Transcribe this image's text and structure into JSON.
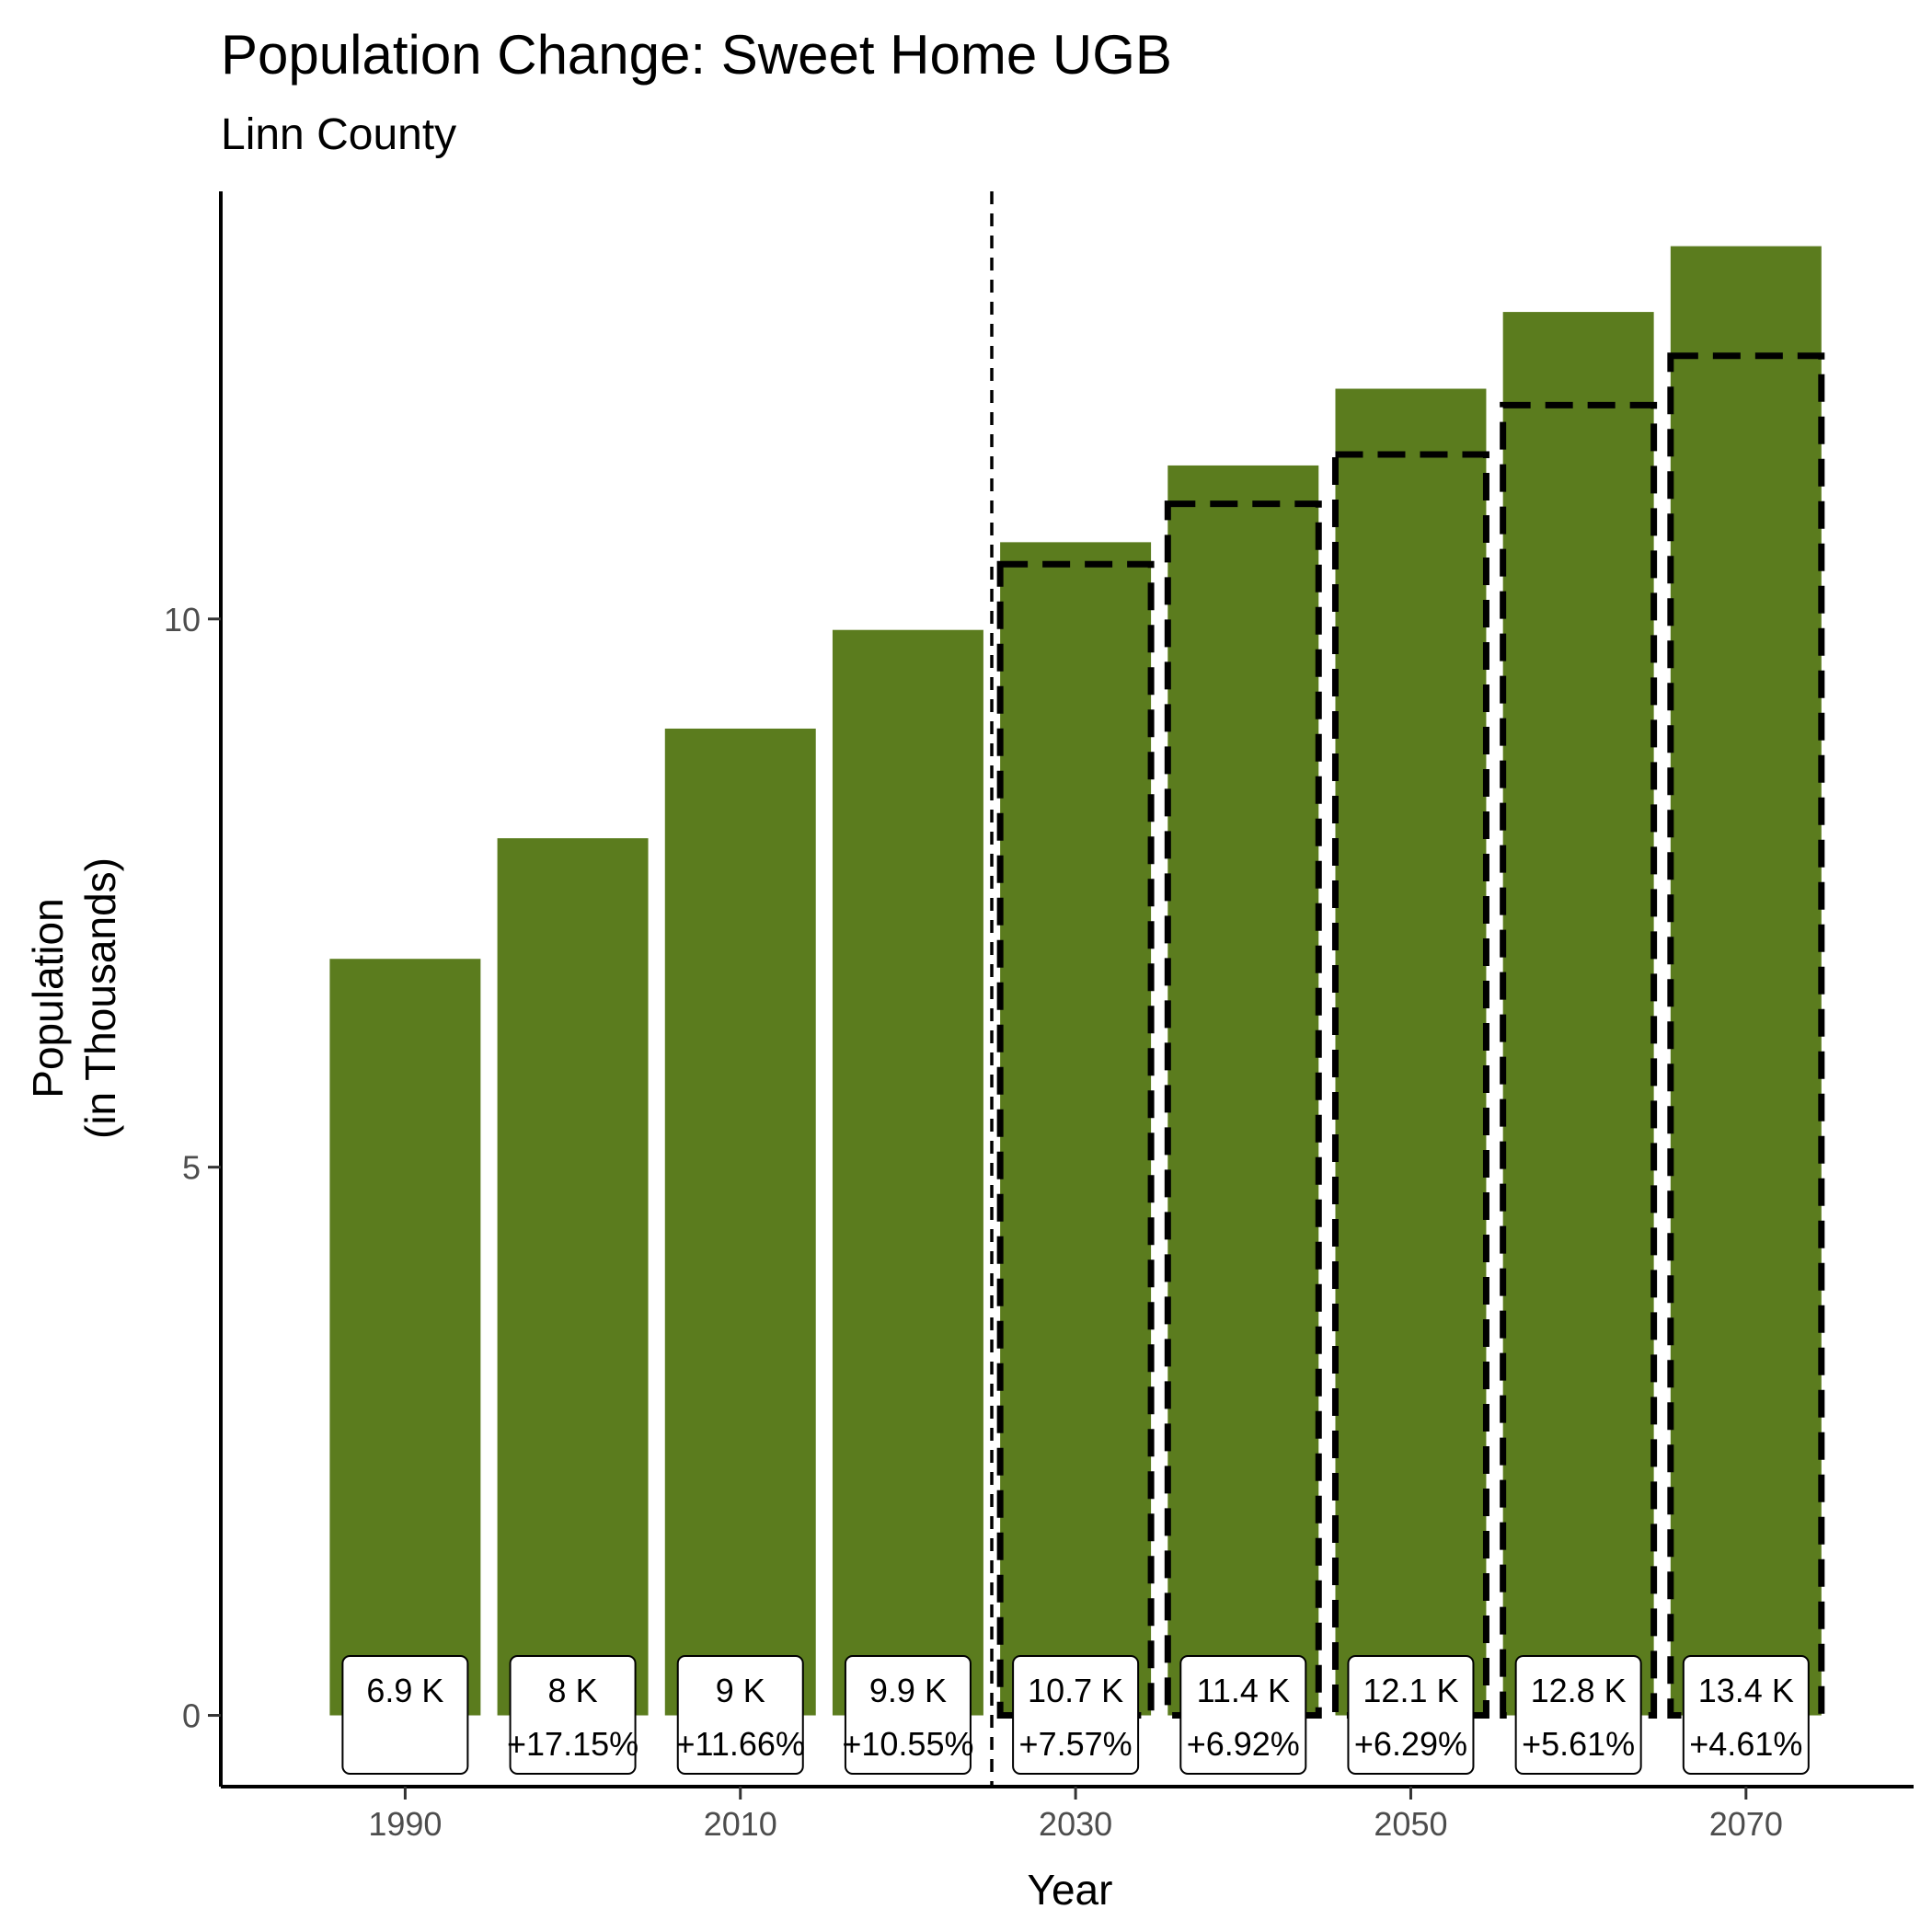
{
  "chart_data": {
    "type": "bar",
    "title": "Population Change: Sweet Home UGB",
    "subtitle": "Linn County",
    "xlabel": "Year",
    "ylabel_line1": "Population",
    "ylabel_line2": "(in Thousands)",
    "x": [
      1990,
      2000,
      2010,
      2020,
      2030,
      2040,
      2050,
      2060,
      2070
    ],
    "values": [
      6.9,
      8.0,
      9.0,
      9.9,
      10.7,
      11.4,
      12.1,
      12.8,
      13.4
    ],
    "value_labels": [
      "6.9 K",
      "8 K",
      "9 K",
      "9.9 K",
      "10.7 K",
      "11.4 K",
      "12.1 K",
      "12.8 K",
      "13.4 K"
    ],
    "change_labels": [
      "",
      "+17.15%",
      "+11.66%",
      "+10.55%",
      "+7.57%",
      "+6.92%",
      "+6.29%",
      "+5.61%",
      "+4.61%"
    ],
    "projection_outline": {
      "x": [
        2030,
        2040,
        2050,
        2060,
        2070
      ],
      "values": [
        10.5,
        11.05,
        11.5,
        11.95,
        12.4
      ]
    },
    "projection_start_line": 2025,
    "xticks": [
      1990,
      2010,
      2030,
      2050,
      2070
    ],
    "yticks": [
      0,
      5,
      10
    ],
    "xlim": [
      1979,
      2080
    ],
    "ylim": [
      -0.65,
      13.9
    ],
    "bar_color": "#5b7c1e",
    "grid": false,
    "legend": "none"
  }
}
